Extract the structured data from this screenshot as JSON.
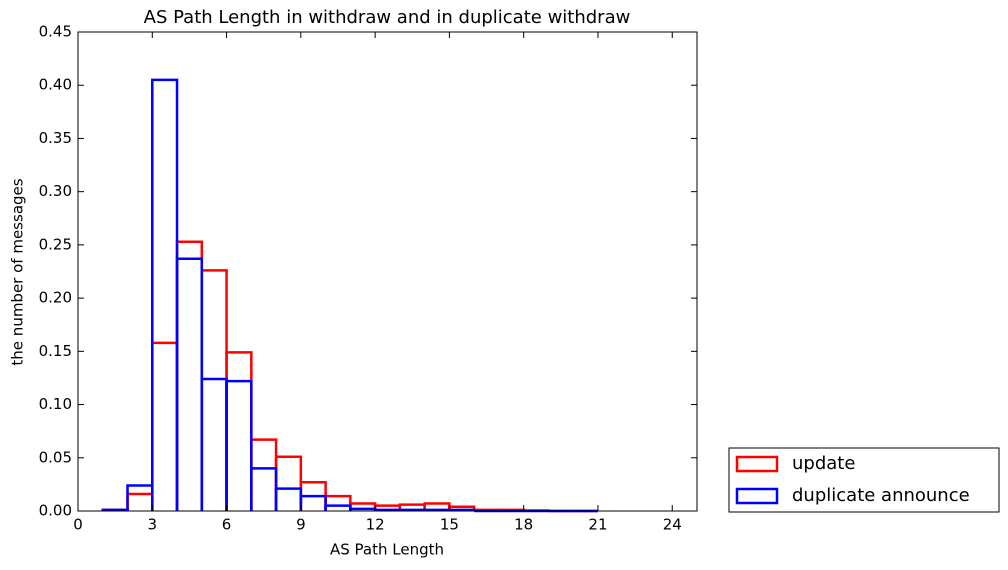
{
  "chart_data": {
    "type": "histogram",
    "title": "AS Path Length in withdraw and in duplicate withdraw",
    "xlabel": "AS Path Length",
    "ylabel": "the number of messages",
    "bins": [
      1,
      2,
      3,
      4,
      5,
      6,
      7,
      8,
      9,
      10,
      11,
      12,
      13,
      14,
      15,
      16,
      17,
      18,
      19,
      20,
      21
    ],
    "series": [
      {
        "name": "update",
        "color": "#ff0000",
        "values": [
          0.001,
          0.016,
          0.158,
          0.253,
          0.226,
          0.149,
          0.067,
          0.051,
          0.027,
          0.014,
          0.007,
          0.005,
          0.006,
          0.007,
          0.004,
          0.001,
          0.001,
          0.0005,
          0,
          0
        ]
      },
      {
        "name": "duplicate announce",
        "color": "#0000ff",
        "values": [
          0.001,
          0.024,
          0.405,
          0.237,
          0.124,
          0.122,
          0.04,
          0.021,
          0.014,
          0.005,
          0.002,
          0.001,
          0.001,
          0.001,
          0.001,
          0,
          0,
          0,
          0,
          0
        ]
      }
    ],
    "xlim": [
      0,
      25
    ],
    "xticks": [
      0,
      3,
      6,
      9,
      12,
      15,
      18,
      21,
      24
    ],
    "ylim": [
      0,
      0.45
    ],
    "yticks": [
      {
        "value": 0,
        "label": "0.00"
      },
      {
        "value": 0.05,
        "label": "0.05"
      },
      {
        "value": 0.1,
        "label": "0.10"
      },
      {
        "value": 0.15,
        "label": "0.15"
      },
      {
        "value": 0.2,
        "label": "0.20"
      },
      {
        "value": 0.25,
        "label": "0.25"
      },
      {
        "value": 0.3,
        "label": "0.30"
      },
      {
        "value": 0.35,
        "label": "0.35"
      },
      {
        "value": 0.4,
        "label": "0.40"
      },
      {
        "value": 0.45,
        "label": "0.45"
      }
    ],
    "legend": "outside lower right"
  }
}
